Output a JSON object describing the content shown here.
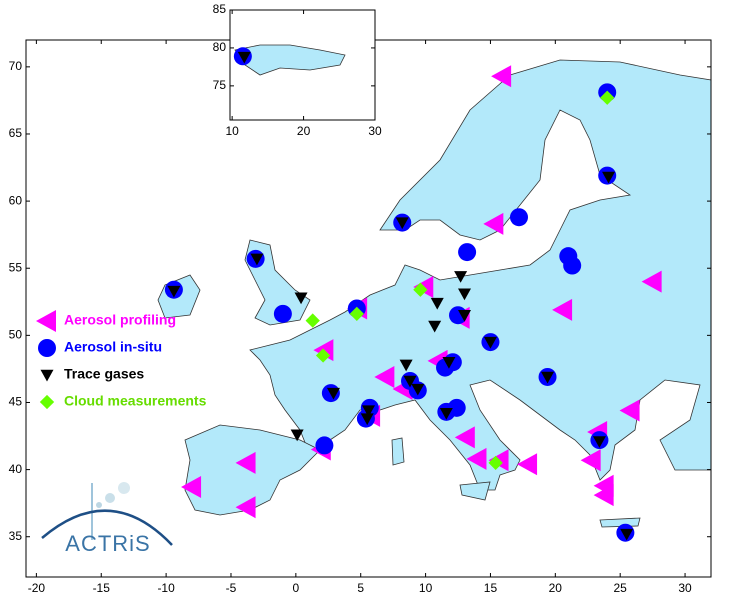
{
  "chart_data": [
    {
      "type": "scatter",
      "xlim": [
        -20.8,
        32
      ],
      "ylim": [
        32,
        72
      ],
      "xticks": [
        -20,
        -15,
        -10,
        -5,
        0,
        5,
        10,
        15,
        20,
        25,
        30
      ],
      "yticks": [
        35,
        40,
        45,
        50,
        55,
        60,
        65,
        70
      ],
      "series": [
        {
          "name": "Aerosol profiling",
          "color": "#ff00ff",
          "marker": "triangle-left",
          "x": [
            15.9,
            15.3,
            20.6,
            27.5,
            4.8,
            9.9,
            12.7,
            11.0,
            6.9,
            8.3,
            5.8,
            2.2,
            2.0,
            13.1,
            14.0,
            15.7,
            17.9,
            25.8,
            23.3,
            22.8,
            23.8,
            23.8,
            -3.8,
            -8.0,
            -3.8
          ],
          "values": [
            69.3,
            58.3,
            51.9,
            54.0,
            52.0,
            53.6,
            51.3,
            48.1,
            46.9,
            46.0,
            44.0,
            48.9,
            41.5,
            42.4,
            40.8,
            40.7,
            40.4,
            44.4,
            42.8,
            40.7,
            38.8,
            38.1,
            40.5,
            38.7,
            37.2
          ]
        },
        {
          "name": "Aerosol in-situ",
          "color": "#0000ff",
          "marker": "circle",
          "x": [
            24.0,
            24.0,
            8.2,
            17.2,
            13.2,
            21.0,
            21.3,
            -3.1,
            -9.4,
            -1.0,
            4.7,
            12.5,
            15.0,
            19.4,
            8.8,
            9.4,
            11.5,
            12.1,
            2.7,
            5.7,
            5.4,
            11.6,
            12.4,
            2.2,
            23.4,
            25.4
          ],
          "values": [
            68.1,
            61.9,
            58.4,
            58.8,
            56.2,
            55.9,
            55.2,
            55.7,
            53.4,
            51.6,
            52.0,
            51.5,
            49.5,
            46.9,
            46.6,
            45.9,
            47.6,
            48.0,
            45.7,
            44.6,
            43.8,
            44.3,
            44.6,
            41.8,
            42.2,
            35.3
          ]
        },
        {
          "name": "Trace gases",
          "color": "#000000",
          "marker": "triangle-down",
          "x": [
            24.1,
            8.2,
            -3.0,
            -9.4,
            0.4,
            12.7,
            13.0,
            10.9,
            10.7,
            13.0,
            15.0,
            19.4,
            8.5,
            11.8,
            8.8,
            9.4,
            2.9,
            5.6,
            5.5,
            11.6,
            0.1,
            23.4,
            25.5
          ],
          "values": [
            61.8,
            58.4,
            55.7,
            53.3,
            52.8,
            54.4,
            53.1,
            52.4,
            50.7,
            51.5,
            49.5,
            46.9,
            47.8,
            48.0,
            46.6,
            46.0,
            45.7,
            44.4,
            43.8,
            44.2,
            42.6,
            42.1,
            35.2
          ]
        },
        {
          "name": "Cloud measurements",
          "color": "#66ff00",
          "marker": "diamond",
          "x": [
            24.0,
            9.6,
            4.7,
            1.3,
            2.1,
            15.4
          ],
          "values": [
            67.7,
            53.4,
            51.6,
            51.1,
            48.5,
            40.5
          ]
        }
      ]
    },
    {
      "type": "scatter",
      "xlim": [
        9.7,
        30
      ],
      "ylim": [
        70.5,
        85
      ],
      "xticks": [
        10,
        20,
        30
      ],
      "yticks": [
        75,
        80,
        85
      ],
      "series": [
        {
          "color": "#0000ff",
          "marker": "circle",
          "x": [
            11.5
          ],
          "values": [
            78.9
          ]
        },
        {
          "color": "#000000",
          "marker": "triangle-down",
          "x": [
            11.7
          ],
          "values": [
            78.8
          ]
        }
      ]
    }
  ],
  "logo": "ACTRiS"
}
